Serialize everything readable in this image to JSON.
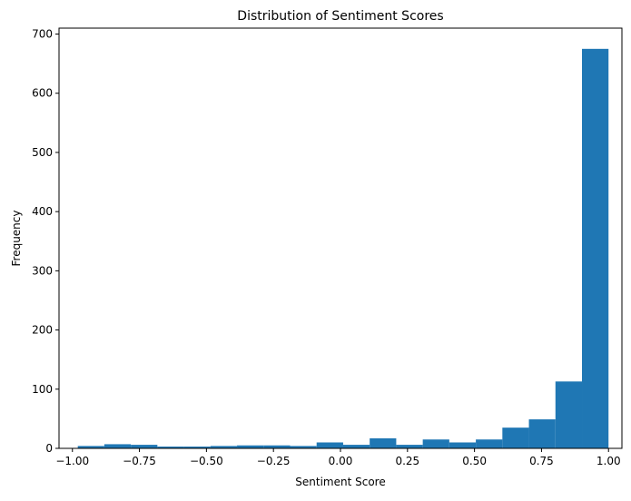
{
  "chart_data": {
    "type": "bar",
    "title": "Distribution of Sentiment Scores",
    "xlabel": "Sentiment Score",
    "ylabel": "Frequency",
    "xlim": [
      -1.05,
      1.05
    ],
    "ylim": [
      0,
      710
    ],
    "xticks": [
      "-1.00",
      "-0.75",
      "-0.50",
      "-0.25",
      "0.00",
      "0.25",
      "0.50",
      "0.75",
      "1.00"
    ],
    "yticks": [
      "0",
      "100",
      "200",
      "300",
      "400",
      "500",
      "600",
      "700"
    ],
    "bin_edges": [
      -0.98,
      -0.881,
      -0.782,
      -0.683,
      -0.584,
      -0.485,
      -0.386,
      -0.287,
      -0.188,
      -0.089,
      0.01,
      0.109,
      0.208,
      0.307,
      0.406,
      0.505,
      0.604,
      0.703,
      0.802,
      0.901,
      1.0
    ],
    "values": [
      4,
      7,
      6,
      3,
      3,
      4,
      5,
      5,
      4,
      10,
      6,
      17,
      6,
      15,
      10,
      15,
      35,
      49,
      113,
      675
    ],
    "bar_color": "#1f77b4",
    "grid": false,
    "legend": "none"
  }
}
